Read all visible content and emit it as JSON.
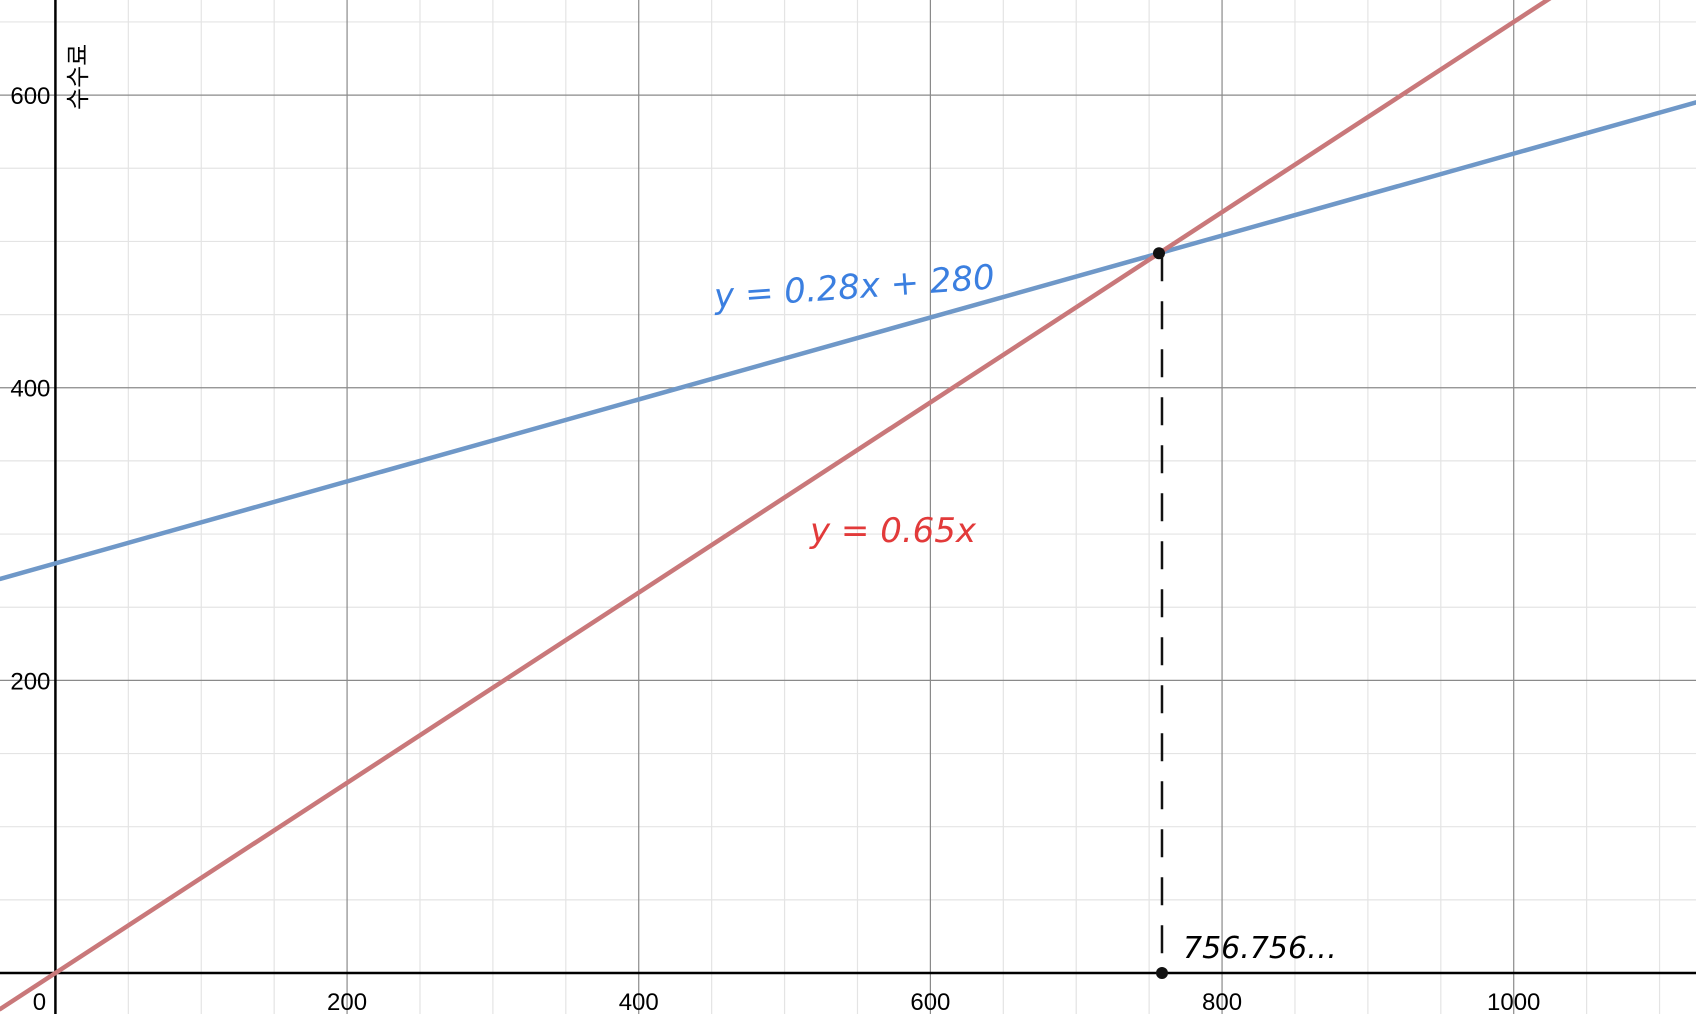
{
  "chart_data": {
    "type": "line",
    "title": "",
    "xlabel": "",
    "ylabel": "수수료",
    "xlim": [
      -38,
      1125
    ],
    "ylim": [
      -28,
      665
    ],
    "x_ticks": [
      0,
      200,
      400,
      600,
      800,
      1000
    ],
    "x_tick_labels": [
      "0",
      "200",
      "400",
      "600",
      "800",
      "1000"
    ],
    "y_ticks": [
      200,
      400,
      600
    ],
    "y_tick_labels": [
      "200",
      "400",
      "600"
    ],
    "grid": true,
    "legend": "none",
    "series": [
      {
        "name": "y = 0.28x + 280",
        "slope": 0.28,
        "intercept": 280,
        "color": "#6f98c8"
      },
      {
        "name": "y = 0.65x",
        "slope": 0.65,
        "intercept": 0,
        "color": "#c9787a"
      }
    ],
    "annotations": [
      {
        "text": "y = 0.28x + 280",
        "color": "#3b7fe0"
      },
      {
        "text": "y = 0.65x",
        "color": "#e23a3a"
      },
      {
        "text": "756.756…",
        "color": "#000000"
      }
    ],
    "intersection": {
      "x": 756.756,
      "y": 491.9
    }
  }
}
